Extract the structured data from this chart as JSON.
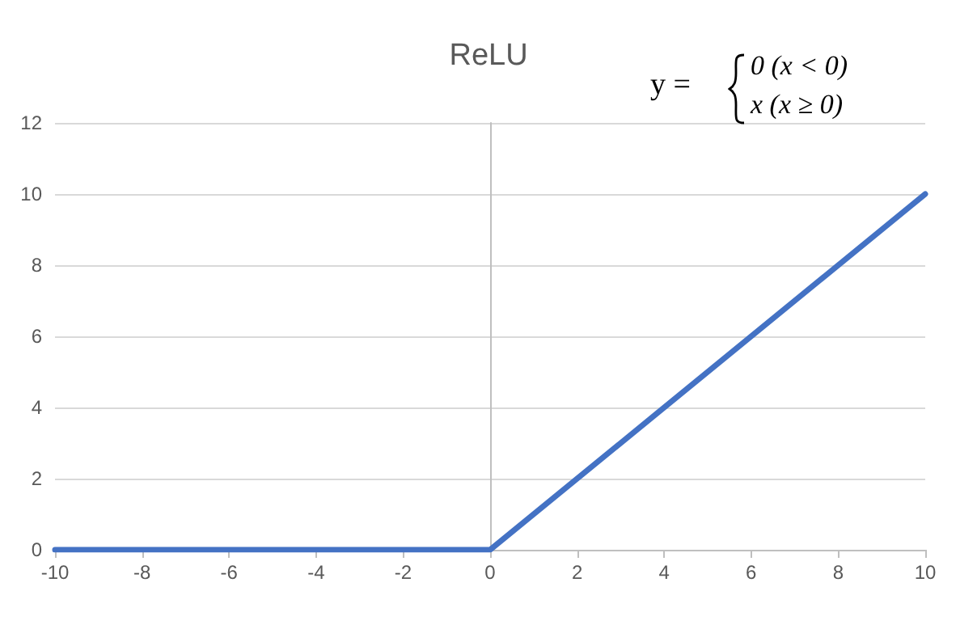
{
  "chart_data": {
    "type": "line",
    "title": "ReLU",
    "x": [
      -10,
      0,
      10
    ],
    "series": [
      {
        "color": "#4472c4",
        "values": [
          0,
          0,
          10
        ]
      }
    ],
    "xlim": [
      -10,
      10
    ],
    "xticks": [
      -10,
      -8,
      -6,
      -4,
      -2,
      0,
      2,
      4,
      6,
      8,
      10
    ],
    "ylim": [
      0,
      12
    ],
    "yticks": [
      0,
      2,
      4,
      6,
      8,
      10,
      12
    ],
    "grid": "y",
    "marker": "none",
    "line_style": "solid",
    "annotations": [
      "y =",
      "0 (x < 0)",
      "x (x ≥ 0)"
    ]
  }
}
